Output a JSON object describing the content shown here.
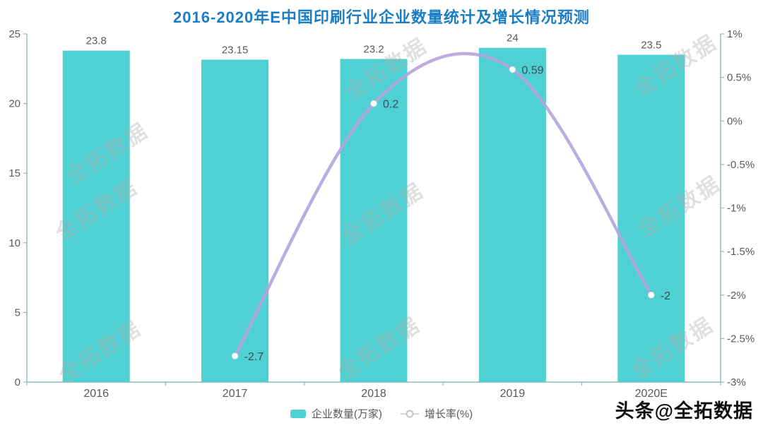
{
  "title": "2016-2020年E中国印刷行业企业数量统计及增长情况预测",
  "watermark": {
    "diagonal_text": "全拓数据",
    "credit": "头条@全拓数据"
  },
  "legend": {
    "bar_label": "企业数量(万家)",
    "line_label": "增长率(%)"
  },
  "colors": {
    "title": "#1B7EC5",
    "bar": "#4FD0D3",
    "line": "#B5A3DB",
    "axis_line": "#8FB9BC",
    "tick_text": "#595959",
    "bar_value_text": "#595959",
    "point_text": "#3F4A56",
    "marker_fill": "#FFFFFF",
    "marker_stroke": "#E3E3E3"
  },
  "chart_data": {
    "type": "bar+line combo",
    "title": "2016-2020年E中国印刷行业企业数量统计及增长情况预测",
    "categories": [
      "2016",
      "2017",
      "2018",
      "2019",
      "2020E"
    ],
    "series": [
      {
        "name": "企业数量(万家)",
        "type": "bar",
        "axis": "left",
        "values": [
          23.8,
          23.15,
          23.2,
          24,
          23.5
        ],
        "labels": [
          "23.8",
          "23.15",
          "23.2",
          "24",
          "23.5"
        ]
      },
      {
        "name": "增长率(%)",
        "type": "line",
        "axis": "right",
        "values": [
          null,
          -2.7,
          0.2,
          0.59,
          -2
        ],
        "labels": [
          null,
          "-2.7",
          "0.2",
          "0.59",
          "-2"
        ]
      }
    ],
    "left_axis": {
      "min": 0,
      "max": 25,
      "ticks": [
        0,
        5,
        10,
        15,
        20,
        25
      ]
    },
    "right_axis": {
      "min": -3,
      "max": 1,
      "ticks": [
        1,
        0.5,
        0,
        -0.5,
        -1,
        -1.5,
        -2,
        -2.5,
        -3
      ],
      "tick_labels": [
        "1%",
        "0.5%",
        "0%",
        "-0.5%",
        "-1%",
        "-1.5%",
        "-2%",
        "-2.5%",
        "-3%"
      ]
    },
    "legend_position": "bottom-center",
    "grid": false
  }
}
